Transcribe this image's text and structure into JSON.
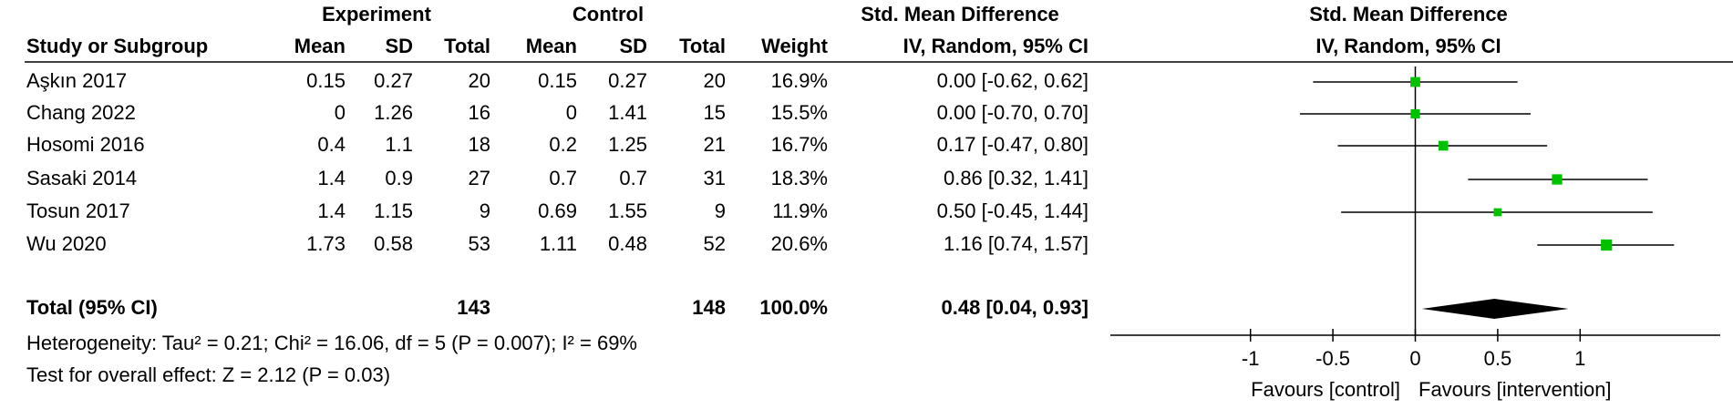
{
  "chart_data": {
    "type": "forest",
    "header": {
      "experiment": "Experiment",
      "control": "Control",
      "smd_title": "Std. Mean Difference",
      "plot_title": "Std. Mean Difference"
    },
    "columns": [
      "Study or Subgroup",
      "Mean",
      "SD",
      "Total",
      "Mean",
      "SD",
      "Total",
      "Weight",
      "IV, Random, 95% CI"
    ],
    "plot_subtitle": "IV, Random, 95% CI",
    "studies": [
      {
        "name": "Aşkın 2017",
        "exp_mean": 0.15,
        "exp_sd": 0.27,
        "exp_total": 20,
        "ctrl_mean": 0.15,
        "ctrl_sd": 0.27,
        "ctrl_total": 20,
        "weight": {
          "value": 16.9,
          "label": "16.9%"
        },
        "ci_label": "0.00 [-0.62, 0.62]",
        "estimate": 0,
        "lower": -0.62,
        "upper": 0.62
      },
      {
        "name": "Chang 2022",
        "exp_mean": 0,
        "exp_sd": 1.26,
        "exp_total": 16,
        "ctrl_mean": 0,
        "ctrl_sd": 1.41,
        "ctrl_total": 15,
        "weight": {
          "value": 15.5,
          "label": "15.5%"
        },
        "ci_label": "0.00 [-0.70, 0.70]",
        "estimate": 0,
        "lower": -0.7,
        "upper": 0.7
      },
      {
        "name": "Hosomi 2016",
        "exp_mean": 0.4,
        "exp_sd": 1.1,
        "exp_total": 18,
        "ctrl_mean": 0.2,
        "ctrl_sd": 1.25,
        "ctrl_total": 21,
        "weight": {
          "value": 16.7,
          "label": "16.7%"
        },
        "ci_label": "0.17 [-0.47, 0.80]",
        "estimate": 0.17,
        "lower": -0.47,
        "upper": 0.8
      },
      {
        "name": "Sasaki 2014",
        "exp_mean": 1.4,
        "exp_sd": 0.9,
        "exp_total": 27,
        "ctrl_mean": 0.7,
        "ctrl_sd": 0.7,
        "ctrl_total": 31,
        "weight": {
          "value": 18.3,
          "label": "18.3%"
        },
        "ci_label": "0.86 [0.32, 1.41]",
        "estimate": 0.86,
        "lower": 0.32,
        "upper": 1.41
      },
      {
        "name": "Tosun 2017",
        "exp_mean": 1.4,
        "exp_sd": 1.15,
        "exp_total": 9,
        "ctrl_mean": 0.69,
        "ctrl_sd": 1.55,
        "ctrl_total": 9,
        "weight": {
          "value": 11.9,
          "label": "11.9%"
        },
        "ci_label": "0.50 [-0.45, 1.44]",
        "estimate": 0.5,
        "lower": -0.45,
        "upper": 1.44
      },
      {
        "name": "Wu 2020",
        "exp_mean": 1.73,
        "exp_sd": 0.58,
        "exp_total": 53,
        "ctrl_mean": 1.11,
        "ctrl_sd": 0.48,
        "ctrl_total": 52,
        "weight": {
          "value": 20.6,
          "label": "20.6%"
        },
        "ci_label": "1.16 [0.74, 1.57]",
        "estimate": 1.16,
        "lower": 0.74,
        "upper": 1.57
      }
    ],
    "total": {
      "name": "Total (95% CI)",
      "exp_total": 143,
      "ctrl_total": 148,
      "weight": {
        "value": 100,
        "label": "100.0%"
      },
      "ci_label": "0.48 [0.04, 0.93]",
      "estimate": 0.48,
      "lower": 0.04,
      "upper": 0.93
    },
    "heterogeneity": "Heterogeneity: Tau² = 0.21; Chi² = 16.06, df = 5 (P = 0.007); I² = 69%",
    "overall_test": "Test for overall effect: Z = 2.12 (P = 0.03)",
    "xlim": [
      -1.85,
      1.85
    ],
    "xticks": [
      -1,
      -0.5,
      0,
      0.5,
      1
    ],
    "x_labels": {
      "left": "Favours [control]",
      "right": "Favours [intervention]"
    },
    "marker_color": "#00c000",
    "diamond_color": "#000000"
  }
}
